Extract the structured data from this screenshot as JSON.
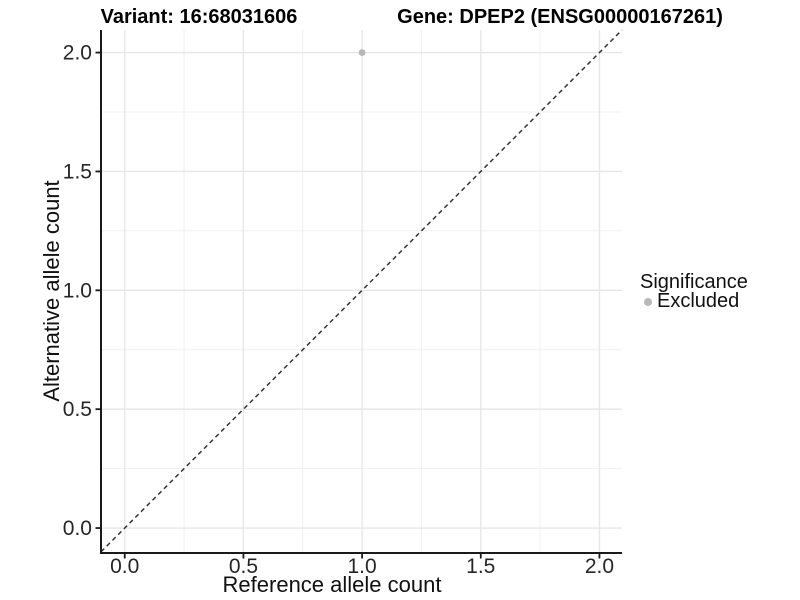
{
  "chart_data": {
    "type": "scatter",
    "title_left": "Variant: 16:68031606",
    "title_right": "Gene: DPEP2 (ENSG00000167261)",
    "xlabel": "Reference allele count",
    "ylabel": "Alternative allele count",
    "xlim": [
      -0.1,
      2.095
    ],
    "ylim": [
      -0.105,
      2.095
    ],
    "xticks": {
      "values": [
        0,
        0.5,
        1,
        1.5,
        2
      ],
      "labels": [
        "0.0",
        "0.5",
        "1.0",
        "1.5",
        "2.0"
      ]
    },
    "yticks": {
      "values": [
        0,
        0.5,
        1,
        1.5,
        2
      ],
      "labels": [
        "0.0",
        "0.5",
        "1.0",
        "1.5",
        "2.0"
      ]
    },
    "minor_grid_values": [
      0.25,
      0.75,
      1.25,
      1.75
    ],
    "grid": {
      "major_color": "#e6e6e6",
      "minor_color": "#f0f0f0"
    },
    "axis_color": "#1a1a1a",
    "tick_label_color": "#262626",
    "identity_line": {
      "style": "dashed",
      "color": "#333333",
      "slope": 1,
      "intercept": 0
    },
    "series": [
      {
        "name": "Excluded",
        "color": "#b8b8b8",
        "points": [
          {
            "x": 1.0,
            "y": 2.0
          }
        ]
      }
    ],
    "legend": {
      "title": "Significance",
      "position": "right",
      "items": [
        {
          "label": "Excluded",
          "color": "#b8b8b8"
        }
      ]
    }
  }
}
